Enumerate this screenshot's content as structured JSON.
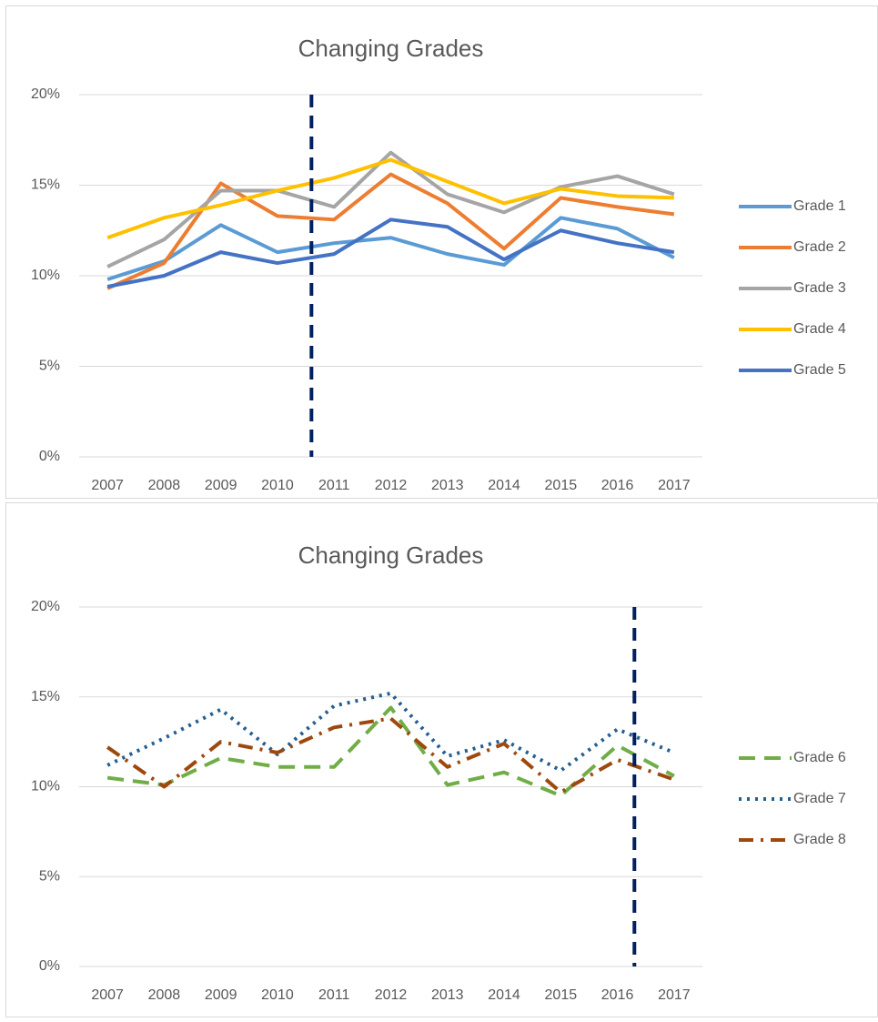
{
  "chart_data": [
    {
      "type": "line",
      "title": "Changing Grades",
      "x": [
        2007,
        2008,
        2009,
        2010,
        2011,
        2012,
        2013,
        2014,
        2015,
        2016,
        2017
      ],
      "xlim": [
        2006.5,
        2017.5
      ],
      "ylim": [
        0,
        20
      ],
      "yticks": [
        {
          "value": 0,
          "label": "0%"
        },
        {
          "value": 5,
          "label": "5%"
        },
        {
          "value": 10,
          "label": "10%"
        },
        {
          "value": 15,
          "label": "15%"
        },
        {
          "value": 20,
          "label": "20%"
        }
      ],
      "grid": true,
      "legend": "right",
      "vline": {
        "x": 2010.6,
        "color": "#002060"
      },
      "series": [
        {
          "name": "Grade 1",
          "color": "#5B9BD5",
          "dash": "solid",
          "values": [
            9.8,
            10.8,
            12.8,
            11.3,
            11.8,
            12.1,
            11.2,
            10.6,
            13.2,
            12.6,
            11.0
          ]
        },
        {
          "name": "Grade 2",
          "color": "#ED7D31",
          "dash": "solid",
          "values": [
            9.3,
            10.7,
            15.1,
            13.3,
            13.1,
            15.6,
            14.0,
            11.5,
            14.3,
            13.8,
            13.4
          ]
        },
        {
          "name": "Grade 3",
          "color": "#A5A5A5",
          "dash": "solid",
          "values": [
            10.5,
            12.0,
            14.7,
            14.7,
            13.8,
            16.8,
            14.5,
            13.5,
            14.9,
            15.5,
            14.5
          ]
        },
        {
          "name": "Grade 4",
          "color": "#FFC000",
          "dash": "solid",
          "values": [
            12.1,
            13.2,
            13.9,
            14.7,
            15.4,
            16.4,
            15.2,
            14.0,
            14.8,
            14.4,
            14.3
          ]
        },
        {
          "name": "Grade 5",
          "color": "#4472C4",
          "dash": "solid",
          "values": [
            9.4,
            10.0,
            11.3,
            10.7,
            11.2,
            13.1,
            12.7,
            10.9,
            12.5,
            11.8,
            11.3
          ]
        }
      ]
    },
    {
      "type": "line",
      "title": "Changing Grades",
      "x": [
        2007,
        2008,
        2009,
        2010,
        2011,
        2012,
        2013,
        2014,
        2015,
        2016,
        2017
      ],
      "xlim": [
        2006.5,
        2017.5
      ],
      "ylim": [
        0,
        20
      ],
      "yticks": [
        {
          "value": 0,
          "label": "0%"
        },
        {
          "value": 5,
          "label": "5%"
        },
        {
          "value": 10,
          "label": "10%"
        },
        {
          "value": 15,
          "label": "15%"
        },
        {
          "value": 20,
          "label": "20%"
        }
      ],
      "grid": true,
      "legend": "right",
      "vline": {
        "x": 2016.3,
        "color": "#002060"
      },
      "series": [
        {
          "name": "Grade 6",
          "color": "#70AD47",
          "dash": "dash",
          "values": [
            10.5,
            10.1,
            11.6,
            11.1,
            11.1,
            14.4,
            10.1,
            10.8,
            9.5,
            12.3,
            10.6
          ]
        },
        {
          "name": "Grade 7",
          "color": "#255E91",
          "dash": "dot",
          "values": [
            11.2,
            12.7,
            14.3,
            11.8,
            14.5,
            15.2,
            11.7,
            12.6,
            10.9,
            13.2,
            11.9
          ]
        },
        {
          "name": "Grade 8",
          "color": "#9E480E",
          "dash": "dashdot",
          "values": [
            12.2,
            10.0,
            12.5,
            11.9,
            13.3,
            13.8,
            11.1,
            12.4,
            9.7,
            11.5,
            10.4
          ]
        }
      ]
    }
  ]
}
